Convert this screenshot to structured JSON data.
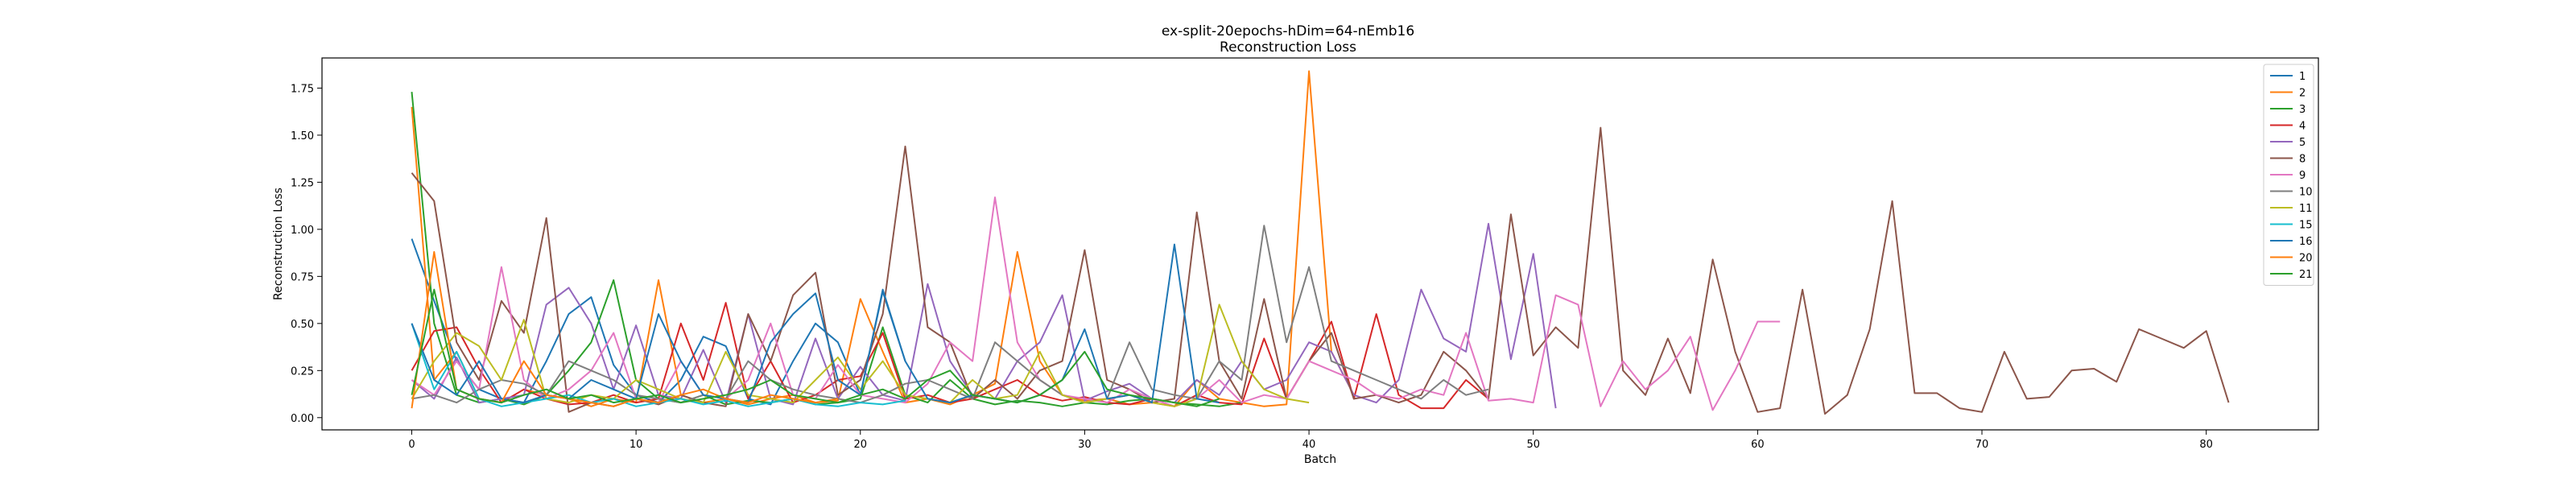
{
  "chart_data": {
    "type": "line",
    "title": "ex-split-20epochs-hDim=64-nEmb16",
    "subtitle": "Reconstruction Loss",
    "xlabel": "Batch",
    "ylabel": "Reconstruction Loss",
    "xlim": [
      -4,
      85
    ],
    "ylim": [
      -0.065,
      1.91
    ],
    "xticks": [
      0,
      10,
      20,
      30,
      40,
      50,
      60,
      70,
      80
    ],
    "yticks": [
      0.0,
      0.25,
      0.5,
      0.75,
      1.0,
      1.25,
      1.5,
      1.75
    ],
    "ytick_labels": [
      "0.00",
      "0.25",
      "0.50",
      "0.75",
      "1.00",
      "1.25",
      "1.50",
      "1.75"
    ],
    "grid": false,
    "legend_position": "top-right",
    "series": [
      {
        "name": "1",
        "color": "#1f77b4",
        "values": [
          0.95,
          0.62,
          0.3,
          0.15,
          0.1,
          0.08,
          0.3,
          0.55,
          0.64,
          0.28,
          0.12,
          0.08,
          0.2,
          0.43,
          0.38,
          0.1,
          0.07,
          0.3,
          0.5,
          0.4,
          0.12,
          0.67,
          0.3
        ]
      },
      {
        "name": "2",
        "color": "#ff7f0e",
        "values": [
          1.65,
          0.2,
          0.35,
          0.1,
          0.08,
          0.15,
          0.12,
          0.1,
          0.06,
          0.1,
          0.08,
          0.73,
          0.12,
          0.08,
          0.1,
          0.07,
          0.1,
          0.12,
          0.08,
          0.09,
          0.63,
          0.35,
          0.08,
          0.1,
          0.07,
          0.12,
          0.18,
          0.88,
          0.3,
          0.12,
          0.09,
          0.1,
          0.07,
          0.08,
          0.06,
          0.2,
          0.1,
          0.08,
          0.06,
          0.07,
          1.84,
          0.35,
          0.12
        ]
      },
      {
        "name": "3",
        "color": "#2ca02c",
        "values": [
          1.73,
          0.5,
          0.12,
          0.08,
          0.1,
          0.07,
          0.12,
          0.25,
          0.4,
          0.73,
          0.2,
          0.1,
          0.08,
          0.12,
          0.07,
          0.09,
          0.08,
          0.1,
          0.07,
          0.08,
          0.1,
          0.48,
          0.12,
          0.08,
          0.2,
          0.1,
          0.07,
          0.09,
          0.08,
          0.06,
          0.08,
          0.07,
          0.09,
          0.1,
          0.08,
          0.07,
          0.06,
          0.08
        ]
      },
      {
        "name": "4",
        "color": "#d62728",
        "values": [
          0.25,
          0.46,
          0.48,
          0.26,
          0.08,
          0.15,
          0.1,
          0.07,
          0.08,
          0.12,
          0.08,
          0.1,
          0.5,
          0.2,
          0.61,
          0.1,
          0.3,
          0.08,
          0.12,
          0.2,
          0.22,
          0.45,
          0.1,
          0.12,
          0.08,
          0.1,
          0.15,
          0.2,
          0.12,
          0.09,
          0.11,
          0.08,
          0.07,
          0.1,
          0.06,
          0.12,
          0.08,
          0.07,
          0.42,
          0.1,
          0.3,
          0.51,
          0.1,
          0.55,
          0.12,
          0.05,
          0.05,
          0.2,
          0.1
        ]
      },
      {
        "name": "5",
        "color": "#9467bd",
        "values": [
          0.2,
          0.1,
          0.32,
          0.08,
          0.1,
          0.12,
          0.6,
          0.69,
          0.5,
          0.15,
          0.49,
          0.12,
          0.1,
          0.36,
          0.08,
          0.55,
          0.1,
          0.07,
          0.42,
          0.1,
          0.27,
          0.12,
          0.09,
          0.71,
          0.3,
          0.12,
          0.1,
          0.3,
          0.4,
          0.65,
          0.09,
          0.14,
          0.18,
          0.1,
          0.08,
          0.2,
          0.12,
          0.3,
          0.15,
          0.2,
          0.4,
          0.35,
          0.12,
          0.08,
          0.2,
          0.68,
          0.42,
          0.35,
          1.03,
          0.31,
          0.87,
          0.05
        ]
      },
      {
        "name": "8",
        "color": "#8c564b",
        "values": [
          1.3,
          1.15,
          0.4,
          0.2,
          0.62,
          0.45,
          1.06,
          0.03,
          0.08,
          0.06,
          0.1,
          0.07,
          0.12,
          0.08,
          0.06,
          0.55,
          0.3,
          0.65,
          0.77,
          0.12,
          0.2,
          0.55,
          1.44,
          0.48,
          0.4,
          0.1,
          0.2,
          0.1,
          0.25,
          0.3,
          0.89,
          0.2,
          0.15,
          0.08,
          0.1,
          1.09,
          0.3,
          0.1,
          0.63,
          0.1,
          0.3,
          0.45,
          0.1,
          0.12,
          0.08,
          0.12,
          0.35,
          0.25,
          0.1,
          1.08,
          0.33,
          0.48,
          0.37,
          1.54,
          0.25,
          0.12,
          0.42,
          0.13,
          0.84,
          0.35,
          0.03,
          0.05,
          0.68,
          0.02,
          0.12,
          0.47,
          1.15,
          0.13,
          0.13,
          0.05,
          0.03,
          0.35,
          0.1,
          0.11,
          0.25,
          0.26,
          0.19,
          0.47,
          0.42,
          0.37,
          0.46,
          0.08
        ]
      },
      {
        "name": "9",
        "color": "#e377c2",
        "values": [
          0.2,
          0.12,
          0.3,
          0.15,
          0.8,
          0.2,
          0.1,
          0.15,
          0.25,
          0.45,
          0.1,
          0.08,
          0.3,
          0.12,
          0.1,
          0.2,
          0.5,
          0.12,
          0.1,
          0.28,
          0.12,
          0.1,
          0.08,
          0.18,
          0.4,
          0.3,
          1.17,
          0.4,
          0.2,
          0.12,
          0.1,
          0.08,
          0.15,
          0.1,
          0.06,
          0.1,
          0.2,
          0.08,
          0.12,
          0.1,
          0.3,
          0.25,
          0.2,
          0.12,
          0.1,
          0.15,
          0.12,
          0.45,
          0.09,
          0.1,
          0.08,
          0.65,
          0.6,
          0.06,
          0.3,
          0.15,
          0.25,
          0.43,
          0.04,
          0.25,
          0.51,
          0.51
        ]
      },
      {
        "name": "10",
        "color": "#7f7f7f",
        "values": [
          0.1,
          0.12,
          0.08,
          0.15,
          0.2,
          0.18,
          0.12,
          0.3,
          0.25,
          0.2,
          0.12,
          0.1,
          0.08,
          0.12,
          0.1,
          0.3,
          0.2,
          0.15,
          0.12,
          0.1,
          0.08,
          0.12,
          0.18,
          0.2,
          0.15,
          0.1,
          0.4,
          0.3,
          0.2,
          0.12,
          0.08,
          0.1,
          0.4,
          0.15,
          0.12,
          0.1,
          0.3,
          0.2,
          1.02,
          0.4,
          0.8,
          0.3,
          0.25,
          0.2,
          0.15,
          0.1,
          0.2,
          0.12,
          0.15
        ]
      },
      {
        "name": "11",
        "color": "#bcbd22",
        "values": [
          0.1,
          0.3,
          0.45,
          0.38,
          0.2,
          0.52,
          0.1,
          0.08,
          0.12,
          0.1,
          0.2,
          0.15,
          0.1,
          0.08,
          0.35,
          0.12,
          0.1,
          0.08,
          0.2,
          0.32,
          0.15,
          0.3,
          0.12,
          0.1,
          0.08,
          0.2,
          0.1,
          0.12,
          0.35,
          0.12,
          0.08,
          0.1,
          0.12,
          0.08,
          0.06,
          0.1,
          0.6,
          0.3,
          0.15,
          0.1,
          0.08
        ]
      },
      {
        "name": "15",
        "color": "#17becf",
        "values": [
          0.5,
          0.15,
          0.35,
          0.1,
          0.06,
          0.08,
          0.1,
          0.12,
          0.08,
          0.1,
          0.06,
          0.08,
          0.1,
          0.07,
          0.09,
          0.06,
          0.08,
          0.1,
          0.07,
          0.06,
          0.08,
          0.07,
          0.09
        ]
      },
      {
        "name": "16",
        "color": "#1f77b4",
        "values": [
          0.5,
          0.2,
          0.12,
          0.3,
          0.1,
          0.08,
          0.12,
          0.1,
          0.2,
          0.15,
          0.1,
          0.55,
          0.3,
          0.12,
          0.1,
          0.08,
          0.4,
          0.55,
          0.66,
          0.2,
          0.12,
          0.68,
          0.3,
          0.1,
          0.08,
          0.12,
          0.1,
          0.08,
          0.12,
          0.2,
          0.47,
          0.1,
          0.12,
          0.08,
          0.92,
          0.1,
          0.08
        ]
      },
      {
        "name": "20",
        "color": "#ff7f0e",
        "values": [
          0.05,
          0.88,
          0.15,
          0.1,
          0.08,
          0.3,
          0.12,
          0.1,
          0.08,
          0.06,
          0.1,
          0.08,
          0.12,
          0.15,
          0.1,
          0.08,
          0.12,
          0.1,
          0.08,
          0.1
        ]
      },
      {
        "name": "21",
        "color": "#2ca02c",
        "values": [
          0.12,
          0.68,
          0.15,
          0.1,
          0.08,
          0.12,
          0.15,
          0.1,
          0.12,
          0.08,
          0.1,
          0.12,
          0.08,
          0.1,
          0.12,
          0.15,
          0.2,
          0.12,
          0.1,
          0.08,
          0.12,
          0.15,
          0.1,
          0.2,
          0.25,
          0.12,
          0.1,
          0.08,
          0.12,
          0.2,
          0.35,
          0.15,
          0.12,
          0.1,
          0.08,
          0.06,
          0.1
        ]
      }
    ]
  }
}
